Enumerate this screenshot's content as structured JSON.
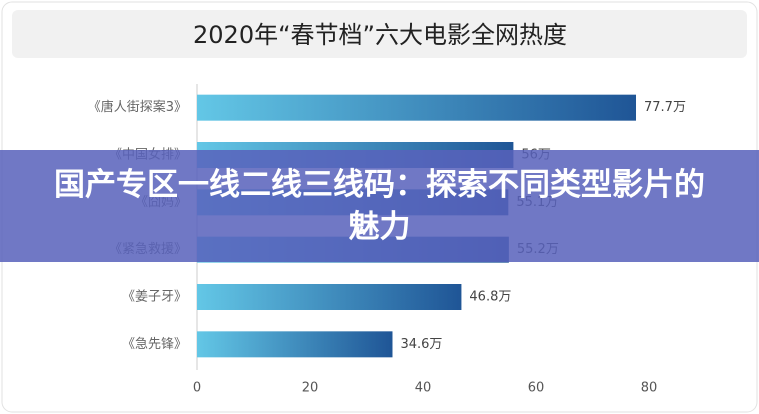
{
  "chart_data": {
    "type": "bar",
    "orientation": "horizontal",
    "title": "2020年“春节档”六大电影全网热度",
    "categories": [
      "《唐人街探案3》",
      "《中国女排》",
      "《囧妈》",
      "《紧急救援》",
      "《姜子牙》",
      "《急先锋》"
    ],
    "values": [
      77.7,
      56,
      55.1,
      55.2,
      46.8,
      34.6
    ],
    "value_labels": [
      "77.7万",
      "56万",
      "55.1万",
      "55.2万",
      "46.8万",
      "34.6万"
    ],
    "color": "#1f5596",
    "xlim": [
      0,
      80
    ],
    "xticks": [
      0,
      20,
      40,
      60,
      80
    ],
    "grid": false
  },
  "banner": {
    "text": "国产专区一线二线三线码：探索不同类型影片的魅力"
  }
}
